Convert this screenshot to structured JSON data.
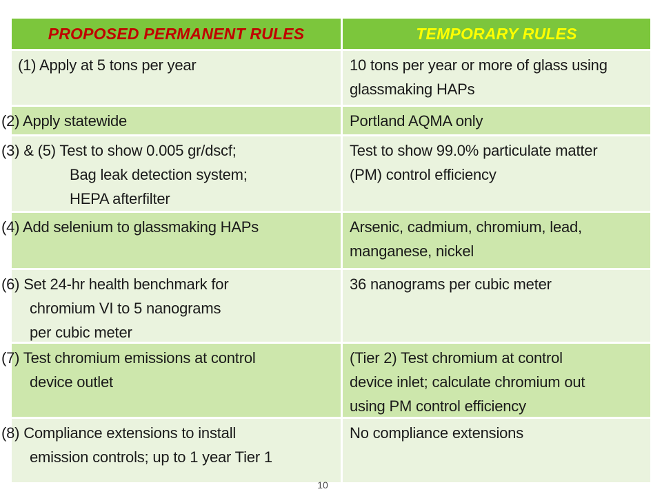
{
  "slide": {
    "page_number": "10"
  },
  "colors": {
    "header_green": "#7CC63C",
    "row_light": "#EAF3DE",
    "row_medium": "#CDE7AC",
    "proposed_header_text": "#C00000",
    "temporary_header_text": "#FFFF00",
    "body_text": "#1A1A1A",
    "page_number_text": "#4A4A4A"
  },
  "table": {
    "headers": [
      {
        "label": "PROPOSED PERMANENT RULES"
      },
      {
        "label": "TEMPORARY RULES"
      }
    ],
    "rows": [
      {
        "left": {
          "lines": [
            "(1) Apply at 5 tons per year"
          ]
        },
        "right": {
          "lines": [
            "10 tons per year or more of glass using",
            "glassmaking HAPs"
          ]
        }
      },
      {
        "left": {
          "lines": [
            "(2) Apply statewide"
          ]
        },
        "right": {
          "lines": [
            "Portland AQMA only"
          ]
        }
      },
      {
        "left": {
          "lines": [
            "(3) & (5) Test to show 0.005 gr/dscf;",
            "Bag leak detection system;",
            "HEPA afterfilter"
          ]
        },
        "right": {
          "lines": [
            "Test to show 99.0% particulate matter",
            "(PM) control efficiency"
          ]
        }
      },
      {
        "left": {
          "lines": [
            "(4) Add selenium to glassmaking HAPs"
          ]
        },
        "right": {
          "lines": [
            "Arsenic, cadmium, chromium, lead,",
            "manganese, nickel"
          ]
        }
      },
      {
        "left": {
          "lines": [
            "(6) Set 24-hr health benchmark for",
            "chromium VI to 5 nanograms",
            "per cubic meter"
          ]
        },
        "right": {
          "lines": [
            "36 nanograms per cubic meter"
          ]
        }
      },
      {
        "left": {
          "lines": [
            "(7) Test chromium emissions at control",
            "device outlet"
          ]
        },
        "right": {
          "lines": [
            "(Tier 2) Test chromium at control",
            "device inlet; calculate chromium out",
            "using PM control efficiency"
          ]
        }
      },
      {
        "left": {
          "lines": [
            "(8) Compliance extensions to install",
            "emission controls; up to 1 year Tier 1"
          ]
        },
        "right": {
          "lines": [
            "No compliance extensions"
          ]
        }
      }
    ]
  }
}
